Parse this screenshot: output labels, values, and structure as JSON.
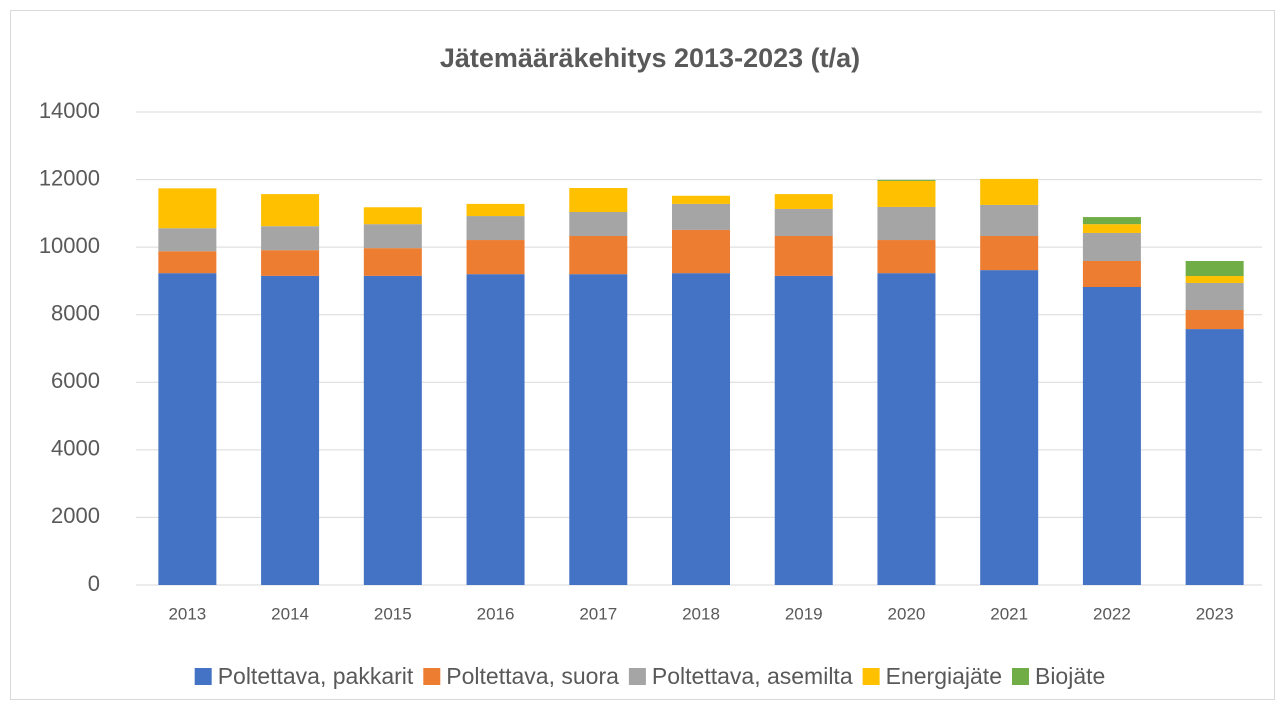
{
  "chart_data": {
    "type": "stacked_bar",
    "title": "Jätemääräkehitys 2013-2023 (t/a)",
    "categories": [
      "2013",
      "2014",
      "2015",
      "2016",
      "2017",
      "2018",
      "2019",
      "2020",
      "2021",
      "2022",
      "2023"
    ],
    "series": [
      {
        "name": "Poltettava, pakkarit",
        "color": "#4472c4",
        "values": [
          9230,
          9150,
          9150,
          9200,
          9200,
          9230,
          9150,
          9230,
          9320,
          8820,
          7575
        ]
      },
      {
        "name": "Poltettava, suora",
        "color": "#ed7d31",
        "values": [
          650,
          760,
          820,
          1010,
          1130,
          1280,
          1180,
          980,
          1010,
          770,
          565
        ]
      },
      {
        "name": "Poltettava, asemilta",
        "color": "#a5a5a5",
        "values": [
          680,
          710,
          710,
          710,
          710,
          770,
          800,
          980,
          920,
          830,
          800
        ]
      },
      {
        "name": "Energiajäte",
        "color": "#ffc000",
        "values": [
          1180,
          950,
          500,
          360,
          710,
          240,
          440,
          770,
          770,
          260,
          205
        ]
      },
      {
        "name": "Biojäte",
        "color": "#70ad47",
        "values": [
          0,
          0,
          0,
          0,
          0,
          0,
          0,
          30,
          0,
          210,
          445
        ]
      }
    ],
    "ylim": [
      0,
      14000
    ],
    "yticks": [
      0,
      2000,
      4000,
      6000,
      8000,
      10000,
      12000,
      14000
    ],
    "grid": true,
    "legend": "bottom"
  }
}
